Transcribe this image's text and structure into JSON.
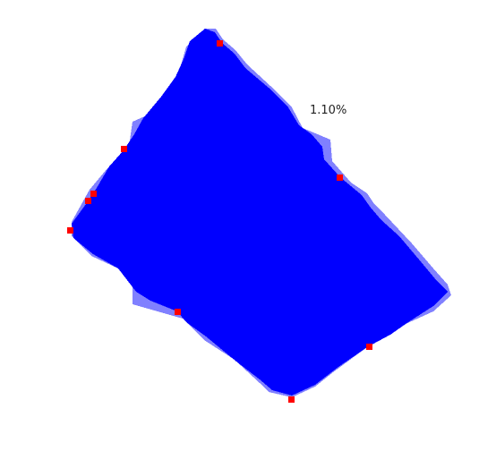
{
  "annotation": {
    "text": "1.10%"
  },
  "colors": {
    "fill": "#0000ff",
    "partial": "#8080ff",
    "marker": "#ff0000",
    "background": "#ffffff"
  }
}
